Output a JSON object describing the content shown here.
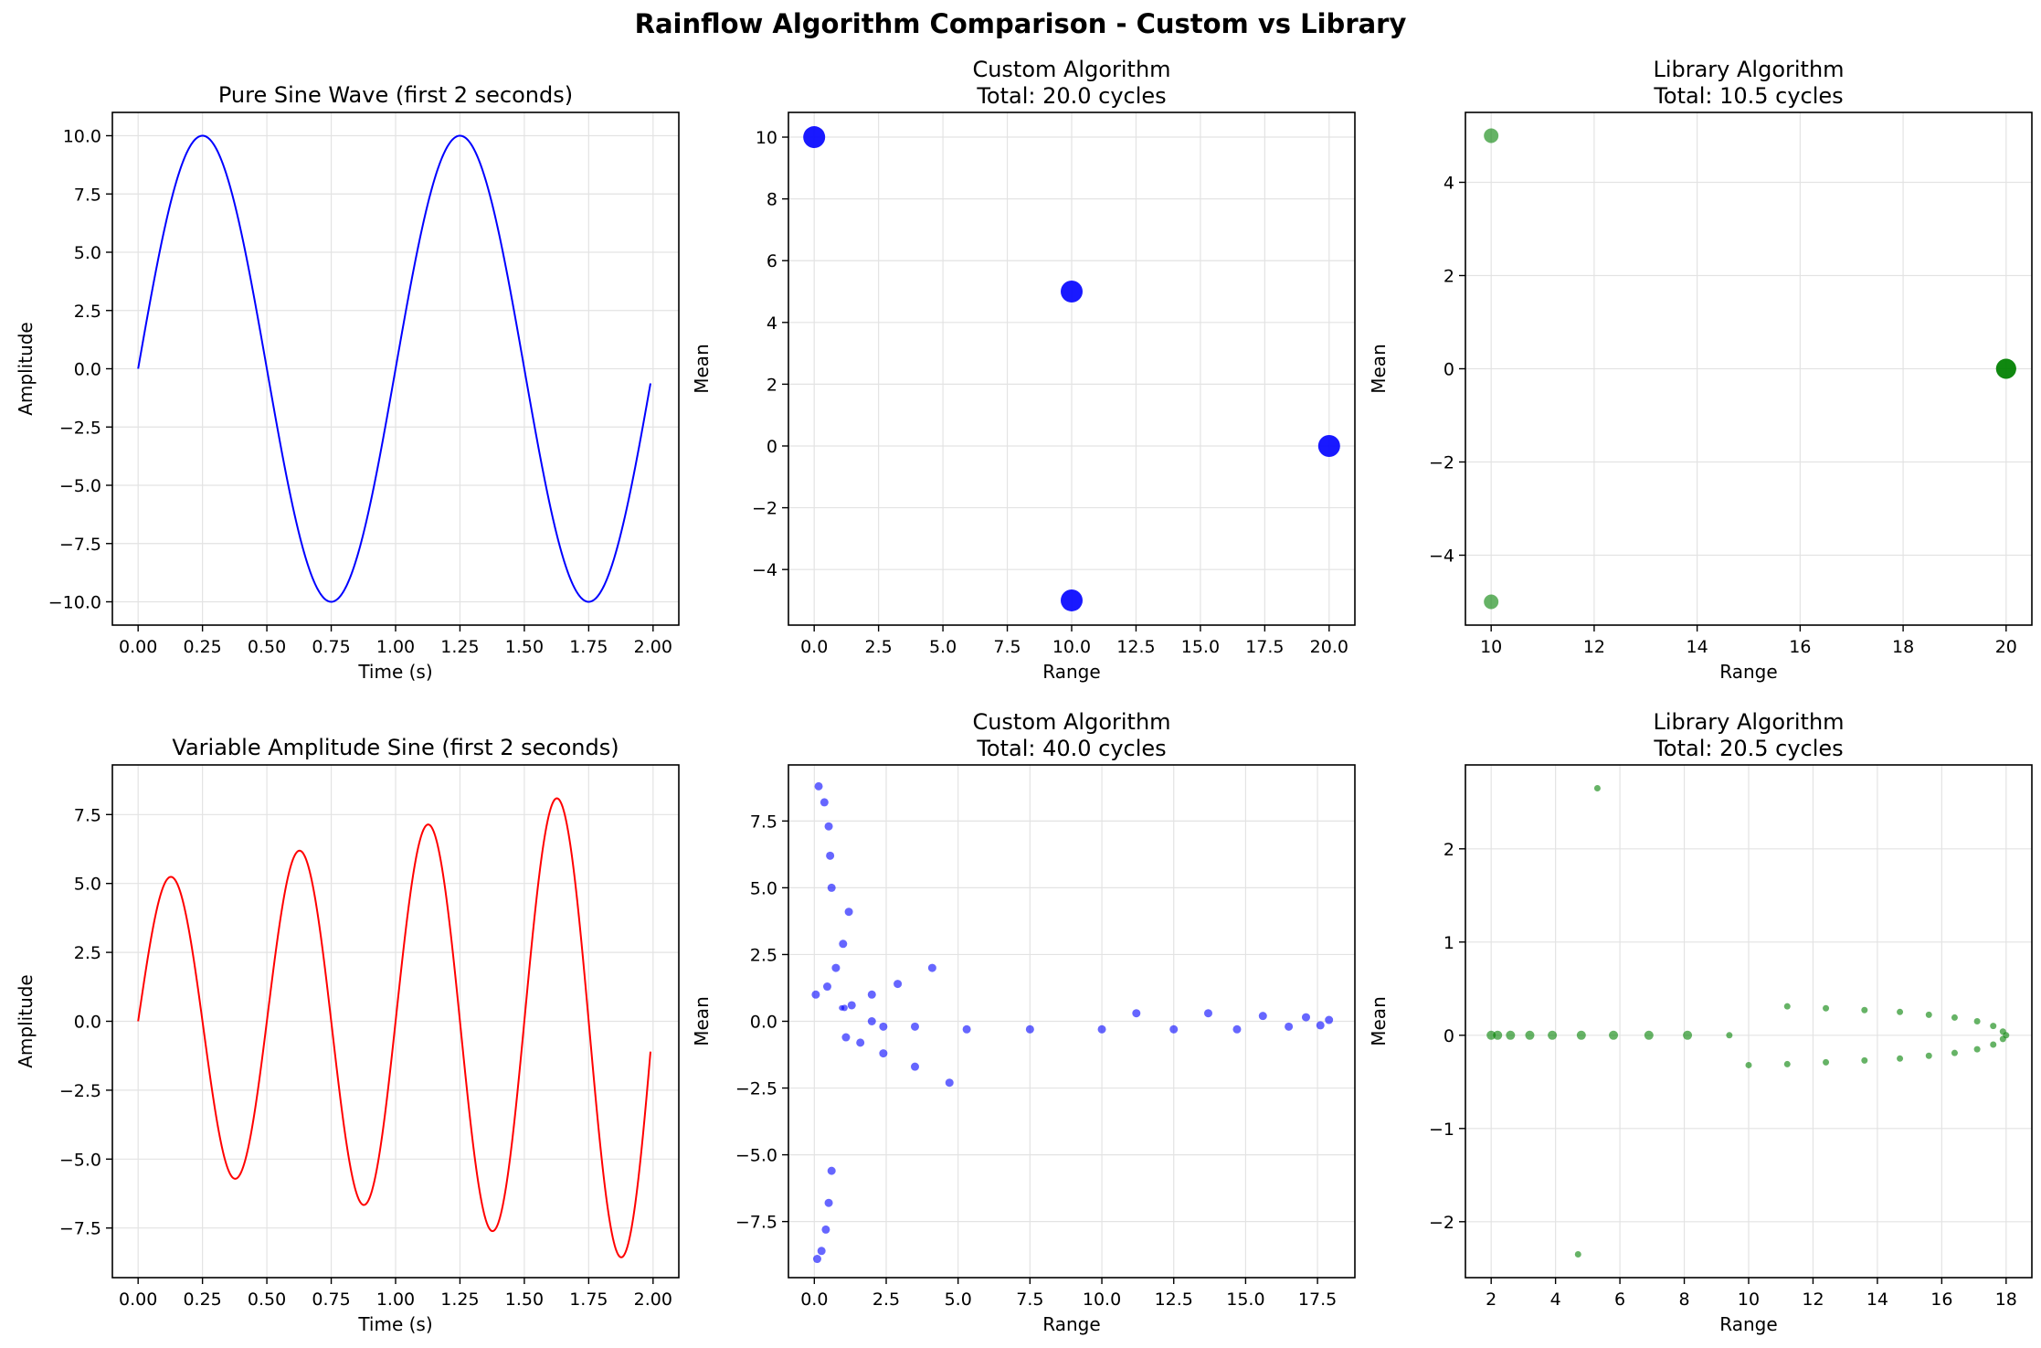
{
  "figure": {
    "suptitle": "Rainflow Algorithm Comparison - Custom vs Library"
  },
  "chart_data": [
    {
      "id": "sine",
      "type": "line",
      "title": "Pure Sine Wave (first 2 seconds)",
      "xlabel": "Time (s)",
      "ylabel": "Amplitude",
      "xlim": [
        -0.1,
        2.1
      ],
      "ylim": [
        -11,
        11
      ],
      "xticks": [
        0,
        0.25,
        0.5,
        0.75,
        1.0,
        1.25,
        1.5,
        1.75,
        2.0
      ],
      "xtick_labels": [
        "0.00",
        "0.25",
        "0.50",
        "0.75",
        "1.00",
        "1.25",
        "1.50",
        "1.75",
        "2.00"
      ],
      "yticks": [
        -10,
        -7.5,
        -5,
        -2.5,
        0,
        2.5,
        5,
        7.5,
        10
      ],
      "ytick_labels": [
        "−10.0",
        "−7.5",
        "−5.0",
        "−2.5",
        "0.0",
        "2.5",
        "5.0",
        "7.5",
        "10.0"
      ],
      "grid": true,
      "color": "#0000ff",
      "function": "sine",
      "params": {
        "amplitude": 10,
        "frequency_hz": 1,
        "t_start": 0,
        "t_end": 1.99
      }
    },
    {
      "id": "custom1",
      "type": "scatter",
      "title": "Custom Algorithm\nTotal: 20.0 cycles",
      "xlabel": "Range",
      "ylabel": "Mean",
      "xlim": [
        -1,
        21
      ],
      "ylim": [
        -5.8,
        10.8
      ],
      "xticks": [
        0,
        2.5,
        5,
        7.5,
        10,
        12.5,
        15,
        17.5,
        20
      ],
      "xtick_labels": [
        "0.0",
        "2.5",
        "5.0",
        "7.5",
        "10.0",
        "12.5",
        "15.0",
        "17.5",
        "20.0"
      ],
      "yticks": [
        -4,
        -2,
        0,
        2,
        4,
        6,
        8,
        10
      ],
      "ytick_labels": [
        "−4",
        "−2",
        "0",
        "2",
        "4",
        "6",
        "8",
        "10"
      ],
      "grid": true,
      "color": "#0000ff",
      "alpha": 0.9,
      "points": [
        [
          0,
          10,
          12
        ],
        [
          10,
          5,
          12
        ],
        [
          20,
          0,
          12
        ],
        [
          10,
          -5,
          12
        ]
      ]
    },
    {
      "id": "library1",
      "type": "scatter",
      "title": "Library Algorithm\nTotal: 10.5 cycles",
      "xlabel": "Range",
      "ylabel": "Mean",
      "xlim": [
        9.5,
        20.5
      ],
      "ylim": [
        -5.5,
        5.5
      ],
      "xticks": [
        10,
        12,
        14,
        16,
        18,
        20
      ],
      "xtick_labels": [
        "10",
        "12",
        "14",
        "16",
        "18",
        "20"
      ],
      "yticks": [
        -4,
        -2,
        0,
        2,
        4
      ],
      "ytick_labels": [
        "−4",
        "−2",
        "0",
        "2",
        "4"
      ],
      "grid": true,
      "color": "#008000",
      "alpha": 0.6,
      "points": [
        [
          10,
          5,
          8
        ],
        [
          10,
          -5,
          8
        ],
        [
          20,
          0,
          11
        ],
        [
          20,
          0,
          11
        ],
        [
          20,
          0,
          11
        ]
      ]
    },
    {
      "id": "sine2",
      "type": "line",
      "title": "Variable Amplitude Sine (first 2 seconds)",
      "xlabel": "Time (s)",
      "ylabel": "Amplitude",
      "xlim": [
        -0.1,
        2.1
      ],
      "ylim": [
        -9.3,
        9.3
      ],
      "xticks": [
        0,
        0.25,
        0.5,
        0.75,
        1.0,
        1.25,
        1.5,
        1.75,
        2.0
      ],
      "xtick_labels": [
        "0.00",
        "0.25",
        "0.50",
        "0.75",
        "1.00",
        "1.25",
        "1.50",
        "1.75",
        "2.00"
      ],
      "yticks": [
        -7.5,
        -5,
        -2.5,
        0,
        2.5,
        5,
        7.5
      ],
      "ytick_labels": [
        "−7.5",
        "−5.0",
        "−2.5",
        "0.0",
        "2.5",
        "5.0",
        "7.5"
      ],
      "grid": true,
      "color": "#ff0000",
      "function": "variable_sine",
      "params": {
        "frequency_hz": 2,
        "t_start": 0,
        "t_end": 1.99
      },
      "peaks": [
        [
          0.125,
          5.3
        ],
        [
          0.375,
          -5.9
        ],
        [
          0.625,
          6.5
        ],
        [
          0.875,
          -7.1
        ],
        [
          1.125,
          7.55
        ],
        [
          1.375,
          -8.1
        ],
        [
          1.625,
          8.4
        ],
        [
          1.875,
          -8.7
        ]
      ]
    },
    {
      "id": "custom2",
      "type": "scatter",
      "title": "Custom Algorithm\nTotal: 40.0 cycles",
      "xlabel": "Range",
      "ylabel": "Mean",
      "xlim": [
        -0.9,
        18.8
      ],
      "ylim": [
        -9.6,
        9.6
      ],
      "xticks": [
        0,
        2.5,
        5,
        7.5,
        10,
        12.5,
        15,
        17.5
      ],
      "xtick_labels": [
        "0.0",
        "2.5",
        "5.0",
        "7.5",
        "10.0",
        "12.5",
        "15.0",
        "17.5"
      ],
      "yticks": [
        -7.5,
        -5,
        -2.5,
        0,
        2.5,
        5,
        7.5
      ],
      "ytick_labels": [
        "−7.5",
        "−5.0",
        "−2.5",
        "0.0",
        "2.5",
        "5.0",
        "7.5"
      ],
      "grid": true,
      "color": "#0000ff",
      "alpha": 0.6,
      "points": [
        [
          0.15,
          8.8,
          4.5
        ],
        [
          0.35,
          8.2,
          4.5
        ],
        [
          0.5,
          7.3,
          4.5
        ],
        [
          0.55,
          6.2,
          4.5
        ],
        [
          0.6,
          5.0,
          4.5
        ],
        [
          1.2,
          4.1,
          4.5
        ],
        [
          1.0,
          2.9,
          4.5
        ],
        [
          0.75,
          2.0,
          4.5
        ],
        [
          0.05,
          1.0,
          4.5
        ],
        [
          0.45,
          1.3,
          4.5
        ],
        [
          1.3,
          0.6,
          4.5
        ],
        [
          1.05,
          0.5,
          3.5
        ],
        [
          0.95,
          0.5,
          3.0
        ],
        [
          2.0,
          1.0,
          4.5
        ],
        [
          2.9,
          1.4,
          4.5
        ],
        [
          4.1,
          2.0,
          4.5
        ],
        [
          2.0,
          0.0,
          4.5
        ],
        [
          2.4,
          -0.2,
          4.5
        ],
        [
          1.1,
          -0.6,
          4.5
        ],
        [
          1.6,
          -0.8,
          4.5
        ],
        [
          2.4,
          -1.2,
          4.5
        ],
        [
          3.5,
          -1.7,
          4.5
        ],
        [
          4.7,
          -2.3,
          4.5
        ],
        [
          3.5,
          -0.2,
          4.5
        ],
        [
          5.3,
          -0.3,
          4.5
        ],
        [
          7.5,
          -0.3,
          4.5
        ],
        [
          10.0,
          -0.3,
          4.5
        ],
        [
          11.2,
          0.3,
          4.5
        ],
        [
          12.5,
          -0.3,
          4.5
        ],
        [
          13.7,
          0.3,
          4.5
        ],
        [
          14.7,
          -0.3,
          4.5
        ],
        [
          15.6,
          0.2,
          4.5
        ],
        [
          16.5,
          -0.2,
          4.5
        ],
        [
          17.1,
          0.15,
          4.5
        ],
        [
          17.6,
          -0.15,
          4.5
        ],
        [
          17.9,
          0.05,
          4.5
        ],
        [
          0.6,
          -5.6,
          4.5
        ],
        [
          0.5,
          -6.8,
          4.5
        ],
        [
          0.4,
          -7.8,
          4.5
        ],
        [
          0.25,
          -8.6,
          4.5
        ],
        [
          0.1,
          -8.9,
          4.5
        ]
      ]
    },
    {
      "id": "library2",
      "type": "scatter",
      "title": "Library Algorithm\nTotal: 20.5 cycles",
      "xlabel": "Range",
      "ylabel": "Mean",
      "xlim": [
        1.2,
        18.8
      ],
      "ylim": [
        -2.6,
        2.9
      ],
      "xticks": [
        2,
        4,
        6,
        8,
        10,
        12,
        14,
        16,
        18
      ],
      "xtick_labels": [
        "2",
        "4",
        "6",
        "8",
        "10",
        "12",
        "14",
        "16",
        "18"
      ],
      "yticks": [
        -2,
        -1,
        0,
        1,
        2
      ],
      "ytick_labels": [
        "−2",
        "−1",
        "0",
        "1",
        "2"
      ],
      "grid": true,
      "color": "#008000",
      "alpha": 0.6,
      "points": [
        [
          2.0,
          0.0,
          5
        ],
        [
          2.2,
          0.0,
          5
        ],
        [
          2.6,
          0.0,
          5
        ],
        [
          3.2,
          0.0,
          5
        ],
        [
          3.9,
          0.0,
          5
        ],
        [
          4.8,
          0.0,
          5
        ],
        [
          5.8,
          0.0,
          5
        ],
        [
          6.9,
          0.0,
          5
        ],
        [
          8.1,
          0.0,
          5
        ],
        [
          9.4,
          0.0,
          3.5
        ],
        [
          5.3,
          2.65,
          3.5
        ],
        [
          4.7,
          -2.35,
          3.5
        ],
        [
          10.0,
          -0.32,
          3.5
        ],
        [
          11.2,
          0.31,
          3.5
        ],
        [
          11.2,
          -0.31,
          3.5
        ],
        [
          12.4,
          0.29,
          3.5
        ],
        [
          12.4,
          -0.29,
          3.5
        ],
        [
          13.6,
          0.27,
          3.5
        ],
        [
          13.6,
          -0.27,
          3.5
        ],
        [
          14.7,
          0.25,
          3.5
        ],
        [
          14.7,
          -0.25,
          3.5
        ],
        [
          15.6,
          0.22,
          3.5
        ],
        [
          15.6,
          -0.22,
          3.5
        ],
        [
          16.4,
          0.19,
          3.5
        ],
        [
          16.4,
          -0.19,
          3.5
        ],
        [
          17.1,
          0.15,
          3.5
        ],
        [
          17.1,
          -0.15,
          3.5
        ],
        [
          17.6,
          0.1,
          3.5
        ],
        [
          17.6,
          -0.1,
          3.5
        ],
        [
          17.9,
          0.04,
          3.5
        ],
        [
          17.9,
          -0.04,
          3.5
        ],
        [
          18.0,
          0.0,
          3.5
        ]
      ]
    }
  ]
}
